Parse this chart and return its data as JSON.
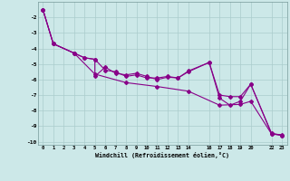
{
  "xlabel": "Windchill (Refroidissement éolien,°C)",
  "bg_color": "#cce8e8",
  "grid_color": "#aacccc",
  "line_color": "#880088",
  "xlim": [
    -0.5,
    23.5
  ],
  "ylim": [
    -10.2,
    -1.0
  ],
  "xticks": [
    0,
    1,
    2,
    3,
    4,
    5,
    6,
    7,
    8,
    9,
    10,
    11,
    12,
    13,
    14,
    16,
    17,
    18,
    19,
    20,
    22,
    23
  ],
  "yticks": [
    -10,
    -9,
    -8,
    -7,
    -6,
    -5,
    -4,
    -3,
    -2
  ],
  "line1_x": [
    0,
    1,
    3,
    4,
    5,
    6,
    7,
    8,
    9,
    10,
    11,
    12,
    13,
    14,
    16,
    17,
    18,
    19,
    20,
    22,
    23
  ],
  "line1_y": [
    -1.5,
    -3.7,
    -4.3,
    -4.6,
    -4.7,
    -5.4,
    -5.5,
    -5.8,
    -5.7,
    -5.9,
    -5.9,
    -5.8,
    -5.9,
    -5.5,
    -4.9,
    -7.0,
    -7.1,
    -7.1,
    -6.3,
    -9.5,
    -9.6
  ],
  "line2_x": [
    0,
    1,
    3,
    4,
    5,
    5,
    6,
    7,
    8,
    9,
    10,
    11,
    12,
    13,
    14,
    16,
    17,
    18,
    19,
    20,
    22,
    23
  ],
  "line2_y": [
    -1.5,
    -3.7,
    -4.3,
    -4.6,
    -4.7,
    -5.8,
    -5.2,
    -5.6,
    -5.7,
    -5.6,
    -5.8,
    -6.0,
    -5.85,
    -5.9,
    -5.45,
    -4.9,
    -7.2,
    -7.65,
    -7.4,
    -6.3,
    -9.45,
    -9.6
  ],
  "line3_x": [
    0,
    1,
    3,
    5,
    8,
    11,
    14,
    17,
    19,
    20,
    22,
    23
  ],
  "line3_y": [
    -1.5,
    -3.7,
    -4.3,
    -5.65,
    -6.2,
    -6.45,
    -6.75,
    -7.65,
    -7.6,
    -7.4,
    -9.5,
    -9.55
  ]
}
